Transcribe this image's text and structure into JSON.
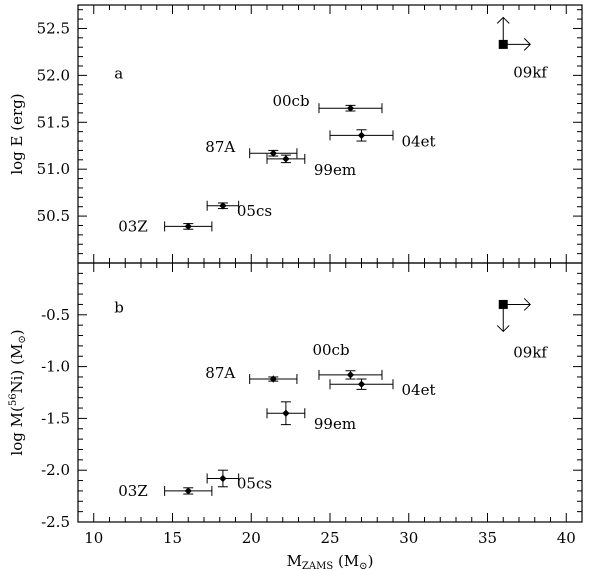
{
  "chart_data": {
    "type": "scatter",
    "xlabel_main": "M",
    "xlabel_sub": "ZAMS",
    "xlabel_unit": " (M",
    "xlabel_unit_close": ")",
    "sun_symbol": "⊙",
    "xlim": [
      9,
      41
    ],
    "xticks": [
      10,
      15,
      20,
      25,
      30,
      35,
      40
    ],
    "panels": [
      {
        "id": "a",
        "tag": "a",
        "ylabel": "log E (erg)",
        "ylim": [
          50.0,
          52.75
        ],
        "yticks": [
          50.5,
          51.0,
          51.5,
          52.0,
          52.5
        ],
        "points": [
          {
            "label": "03Z",
            "x": 16.0,
            "y": 50.39,
            "xerr": 1.5,
            "yerr": 0.03
          },
          {
            "label": "05cs",
            "x": 18.2,
            "y": 50.61,
            "xerr": 1.0,
            "yerr": 0.03
          },
          {
            "label": "87A",
            "x": 21.4,
            "y": 51.17,
            "xerr": 1.5,
            "yerr": 0.03
          },
          {
            "label": "99em",
            "x": 22.2,
            "y": 51.11,
            "xerr": 1.2,
            "yerr": 0.04
          },
          {
            "label": "00cb",
            "x": 26.3,
            "y": 51.65,
            "xerr": 2.0,
            "yerr": 0.03
          },
          {
            "label": "04et",
            "x": 27.0,
            "y": 51.36,
            "xerr": 2.0,
            "yerr": 0.06
          }
        ],
        "limit": {
          "label": "09kf",
          "x": 36.0,
          "y": 52.33,
          "arrows": [
            "up",
            "right"
          ]
        }
      },
      {
        "id": "b",
        "tag": "b",
        "ylabel_prefix": "log M(",
        "ylabel_iso": "56",
        "ylabel_element": "Ni) (M",
        "ylabel_close": ")",
        "ylim": [
          -2.5,
          -0.0
        ],
        "yticks": [
          -2.5,
          -2.0,
          -1.5,
          -1.0,
          -0.5
        ],
        "points": [
          {
            "label": "03Z",
            "x": 16.0,
            "y": -2.2,
            "xerr": 1.5,
            "yerr": 0.03
          },
          {
            "label": "05cs",
            "x": 18.2,
            "y": -2.08,
            "xerr": 1.0,
            "yerr": 0.08
          },
          {
            "label": "87A",
            "x": 21.4,
            "y": -1.12,
            "xerr": 1.5,
            "yerr": 0.02
          },
          {
            "label": "99em",
            "x": 22.2,
            "y": -1.45,
            "xerr": 1.2,
            "yerr": 0.11
          },
          {
            "label": "00cb",
            "x": 26.3,
            "y": -1.08,
            "xerr": 2.0,
            "yerr": 0.04
          },
          {
            "label": "04et",
            "x": 27.0,
            "y": -1.17,
            "xerr": 2.0,
            "yerr": 0.05
          }
        ],
        "limit": {
          "label": "09kf",
          "x": 36.0,
          "y": -0.4,
          "arrows": [
            "down",
            "right"
          ]
        }
      }
    ]
  }
}
